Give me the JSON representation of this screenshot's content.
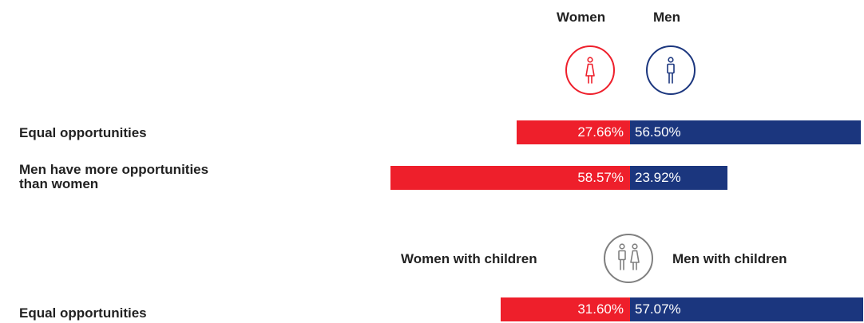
{
  "colors": {
    "women": "#ee1f2b",
    "men": "#1b367e",
    "neutral": "#808080"
  },
  "legend": {
    "women": "Women",
    "men": "Men",
    "women_with_children": "Women with children",
    "men_with_children": "Men with children"
  },
  "icons": {
    "women": "woman-icon",
    "men": "man-icon",
    "parents": "parents-icon"
  },
  "chart_data": {
    "type": "bar",
    "orientation": "horizontal-diverging",
    "unit": "%",
    "groups": [
      {
        "series": [
          "Women",
          "Men"
        ],
        "rows": [
          {
            "label": "Equal opportunities",
            "values": [
              27.66,
              56.5
            ],
            "labels": [
              "27.66%",
              "56.50%"
            ]
          },
          {
            "label_lines": [
              "Men have more opportunities",
              "than women"
            ],
            "values": [
              58.57,
              23.92
            ],
            "labels": [
              "58.57%",
              "23.92%"
            ]
          }
        ]
      },
      {
        "series": [
          "Women with children",
          "Men with children"
        ],
        "rows": [
          {
            "label": "Equal opportunities",
            "values": [
              31.6,
              57.07
            ],
            "labels": [
              "31.60%",
              "57.07%"
            ]
          }
        ]
      }
    ]
  }
}
